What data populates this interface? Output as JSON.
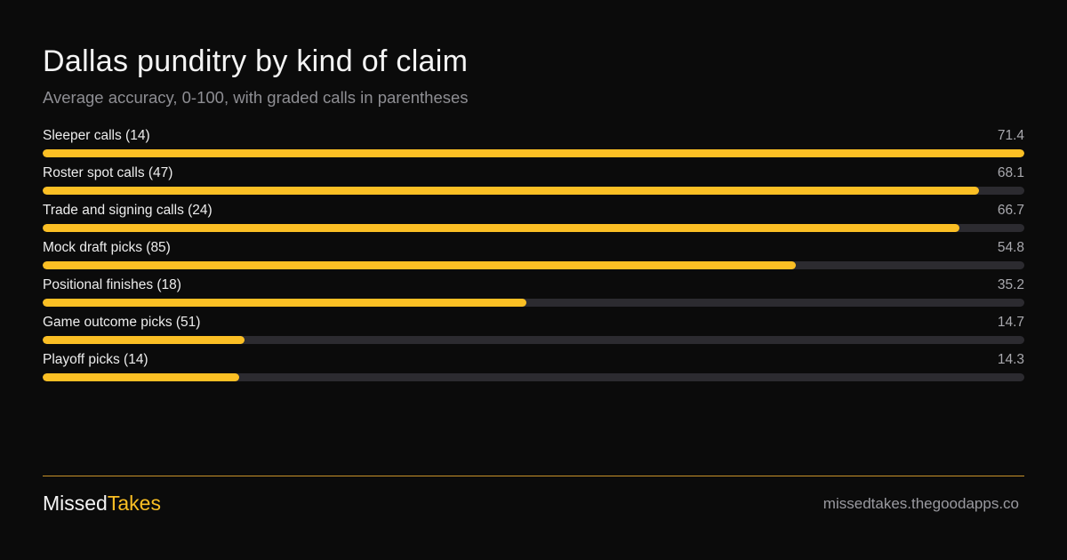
{
  "chart_data": {
    "type": "bar",
    "orientation": "horizontal",
    "title": "Dallas punditry by kind of claim",
    "subtitle": "Average accuracy, 0-100, with graded calls in parentheses",
    "xlim": [
      0,
      71.4
    ],
    "grid": false,
    "categories": [
      "Sleeper calls (14)",
      "Roster spot calls (47)",
      "Trade and signing calls (24)",
      "Mock draft picks (85)",
      "Positional finishes (18)",
      "Game outcome picks (51)",
      "Playoff picks (14)"
    ],
    "values": [
      71.4,
      68.1,
      66.7,
      54.8,
      35.2,
      14.7,
      14.3
    ],
    "value_labels": [
      "71.4",
      "68.1",
      "66.7",
      "54.8",
      "35.2",
      "14.7",
      "14.3"
    ],
    "colors": {
      "bar": "#fbbf24",
      "track": "#2c2b30"
    }
  },
  "footer": {
    "brand_part1": "Missed",
    "brand_part2": "Takes",
    "url": "missedtakes.thegoodapps.co"
  },
  "colors": {
    "background": "#0b0b0b",
    "accent": "#fbbf24",
    "divider": "#c8922a"
  }
}
